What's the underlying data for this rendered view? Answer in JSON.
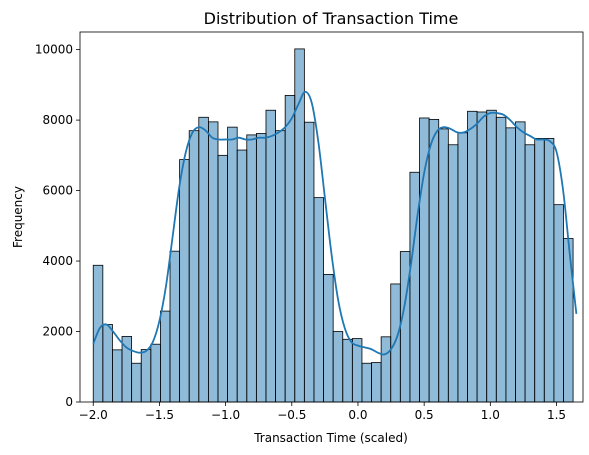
{
  "chart_data": {
    "type": "bar",
    "subtype": "histogram",
    "title": "Distribution of Transaction Time",
    "xlabel": "Transaction Time (scaled)",
    "ylabel": "Frequency",
    "xlim": [
      -2.1,
      1.7
    ],
    "ylim": [
      0,
      10500
    ],
    "xticks": [
      -2.0,
      -1.5,
      -1.0,
      -0.5,
      0.0,
      0.5,
      1.0,
      1.5
    ],
    "xtick_labels": [
      "−2.0",
      "−1.5",
      "−1.0",
      "−0.5",
      "0.0",
      "0.5",
      "1.0",
      "1.5"
    ],
    "yticks": [
      0,
      2000,
      4000,
      6000,
      8000,
      10000
    ],
    "ytick_labels": [
      "0",
      "2000",
      "4000",
      "6000",
      "8000",
      "10000"
    ],
    "grid": false,
    "bin_start": -2.0,
    "bin_width": 0.0725,
    "values": [
      3880,
      2200,
      1480,
      1860,
      1100,
      1490,
      1640,
      2580,
      4280,
      6880,
      7700,
      8080,
      7950,
      7000,
      7800,
      7150,
      7580,
      7620,
      8280,
      7700,
      8700,
      10020,
      7940,
      5800,
      3620,
      2000,
      1780,
      1800,
      1100,
      1120,
      1850,
      3350,
      4270,
      6520,
      8060,
      8020,
      7750,
      7300,
      7640,
      8250,
      8230,
      8280,
      8080,
      7780,
      7950,
      7300,
      7480,
      7480,
      5600,
      4640
    ],
    "kde": {
      "x": [
        -2.0,
        -1.95,
        -1.9,
        -1.85,
        -1.8,
        -1.75,
        -1.7,
        -1.65,
        -1.6,
        -1.55,
        -1.5,
        -1.45,
        -1.4,
        -1.35,
        -1.3,
        -1.25,
        -1.2,
        -1.15,
        -1.1,
        -1.05,
        -1.0,
        -0.95,
        -0.9,
        -0.85,
        -0.8,
        -0.75,
        -0.7,
        -0.65,
        -0.6,
        -0.55,
        -0.5,
        -0.45,
        -0.4,
        -0.35,
        -0.3,
        -0.25,
        -0.2,
        -0.15,
        -0.1,
        -0.05,
        0.0,
        0.05,
        0.1,
        0.15,
        0.2,
        0.25,
        0.3,
        0.35,
        0.4,
        0.45,
        0.5,
        0.55,
        0.6,
        0.65,
        0.7,
        0.75,
        0.8,
        0.85,
        0.9,
        0.95,
        1.0,
        1.05,
        1.1,
        1.15,
        1.2,
        1.25,
        1.3,
        1.35,
        1.4,
        1.45,
        1.5,
        1.55,
        1.6,
        1.65
      ],
      "y": [
        1650,
        2100,
        2200,
        2000,
        1750,
        1550,
        1450,
        1400,
        1450,
        1700,
        2300,
        3300,
        4700,
        6100,
        7100,
        7650,
        7800,
        7700,
        7500,
        7450,
        7450,
        7450,
        7500,
        7450,
        7450,
        7500,
        7500,
        7550,
        7650,
        7800,
        8050,
        8450,
        8800,
        8500,
        7400,
        5800,
        4200,
        2900,
        2100,
        1700,
        1600,
        1550,
        1500,
        1400,
        1350,
        1500,
        1900,
        2700,
        3900,
        5300,
        6500,
        7300,
        7700,
        7800,
        7750,
        7650,
        7650,
        7750,
        7900,
        8100,
        8200,
        8200,
        8150,
        8000,
        7800,
        7650,
        7550,
        7450,
        7450,
        7400,
        7100,
        6000,
        4200,
        2500
      ]
    }
  }
}
